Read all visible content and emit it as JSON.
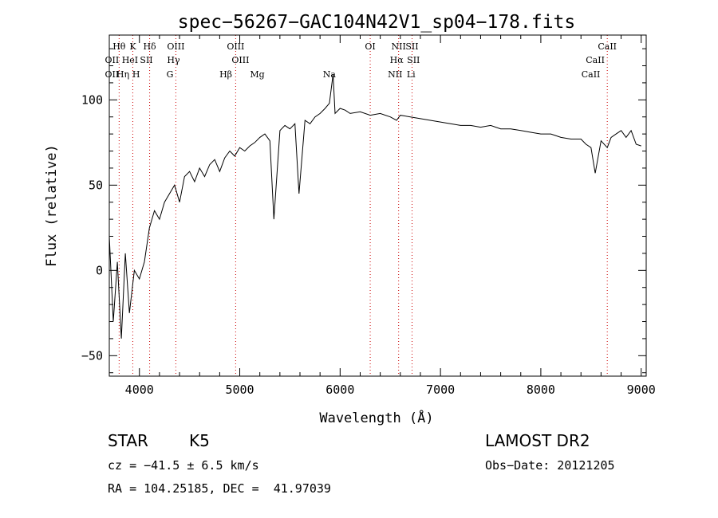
{
  "chart_data": {
    "type": "line",
    "title": "spec−56267−GAC104N42V1_sp04−178.fits",
    "xlabel": "Wavelength (Å)",
    "ylabel": "Flux (relative)",
    "xlim": [
      3700,
      9050
    ],
    "ylim": [
      -62,
      138
    ],
    "xticks": [
      4000,
      5000,
      6000,
      7000,
      8000,
      9000
    ],
    "yticks": [
      -50,
      0,
      50,
      100
    ],
    "grid": false,
    "legend": "none",
    "line_color": "#000000",
    "line_marker_color": "#cc0000",
    "series": [
      {
        "x": [
          3700,
          3740,
          3780,
          3820,
          3860,
          3900,
          3950,
          4000,
          4050,
          4100,
          4150,
          4200,
          4250,
          4300,
          4350,
          4400,
          4450,
          4500,
          4550,
          4600,
          4650,
          4700,
          4750,
          4800,
          4850,
          4900,
          4950,
          5000,
          5050,
          5100,
          5150,
          5200,
          5250,
          5300,
          5340,
          5400,
          5450,
          5500,
          5550,
          5590,
          5650,
          5700,
          5750,
          5800,
          5850,
          5893,
          5930,
          5950,
          6000,
          6050,
          6100,
          6200,
          6300,
          6400,
          6500,
          6563,
          6600,
          6700,
          6800,
          6900,
          7000,
          7100,
          7200,
          7300,
          7400,
          7500,
          7600,
          7700,
          7800,
          7900,
          8000,
          8100,
          8200,
          8300,
          8400,
          8450,
          8500,
          8542,
          8600,
          8662,
          8700,
          8750,
          8800,
          8850,
          8900,
          8950,
          9000
        ],
        "values": [
          20,
          -30,
          5,
          -40,
          10,
          -25,
          0,
          -5,
          5,
          25,
          35,
          30,
          40,
          45,
          50,
          40,
          55,
          58,
          52,
          60,
          55,
          62,
          65,
          58,
          66,
          70,
          67,
          72,
          70,
          73,
          75,
          78,
          80,
          76,
          30,
          82,
          85,
          83,
          86,
          45,
          88,
          86,
          90,
          92,
          95,
          98,
          115,
          92,
          95,
          94,
          92,
          93,
          91,
          92,
          90,
          88,
          91,
          90,
          89,
          88,
          87,
          86,
          85,
          85,
          84,
          85,
          83,
          83,
          82,
          81,
          80,
          80,
          78,
          77,
          77,
          74,
          72,
          57,
          76,
          72,
          78,
          80,
          82,
          78,
          82,
          74,
          73
        ]
      }
    ],
    "lines": [
      {
        "name": "Hθ",
        "wave": 3798,
        "row": 1
      },
      {
        "name": "K",
        "wave": 3934,
        "row": 1
      },
      {
        "name": "Hδ",
        "wave": 4102,
        "row": 1
      },
      {
        "name": "OIII",
        "wave": 4363,
        "row": 1
      },
      {
        "name": "OIII",
        "wave": 4959,
        "row": 1
      },
      {
        "name": "Na",
        "wave": 5893,
        "row": 3
      },
      {
        "name": "OI",
        "wave": 6300,
        "row": 1
      },
      {
        "name": "NII",
        "wave": 6583,
        "row": 1
      },
      {
        "name": "SII",
        "wave": 6717,
        "row": 1
      },
      {
        "name": "CaII",
        "wave": 8662,
        "row": 1
      },
      {
        "name": "OII",
        "wave": 3727,
        "row": 2
      },
      {
        "name": "He",
        "wave": 3889,
        "row": 2
      },
      {
        "name": "I",
        "wave": 3970,
        "row": 2
      },
      {
        "name": "SII",
        "wave": 4070,
        "row": 2
      },
      {
        "name": "Hγ",
        "wave": 4340,
        "row": 2
      },
      {
        "name": "OIII",
        "wave": 5007,
        "row": 2
      },
      {
        "name": "Hα",
        "wave": 6563,
        "row": 2
      },
      {
        "name": "SII",
        "wave": 6731,
        "row": 2
      },
      {
        "name": "CaII",
        "wave": 8542,
        "row": 2
      },
      {
        "name": "OII",
        "wave": 3727,
        "row": 3
      },
      {
        "name": "Hη",
        "wave": 3835,
        "row": 3
      },
      {
        "name": "H",
        "wave": 3968,
        "row": 3
      },
      {
        "name": "G",
        "wave": 4304,
        "row": 3
      },
      {
        "name": "Hβ",
        "wave": 4861,
        "row": 3
      },
      {
        "name": "Mg",
        "wave": 5175,
        "row": 3
      },
      {
        "name": "NII",
        "wave": 6548,
        "row": 3
      },
      {
        "name": "Li",
        "wave": 6707,
        "row": 3
      },
      {
        "name": "CaII",
        "wave": 8498,
        "row": 3
      }
    ]
  },
  "info": {
    "class": "STAR",
    "subclass": "K5",
    "survey": "LAMOST DR2",
    "redshift": "cz = −41.5 ± 6.5 km/s",
    "obs_date": "Obs−Date: 20121205",
    "coords": "RA = 104.25185, DEC =  41.97039"
  }
}
